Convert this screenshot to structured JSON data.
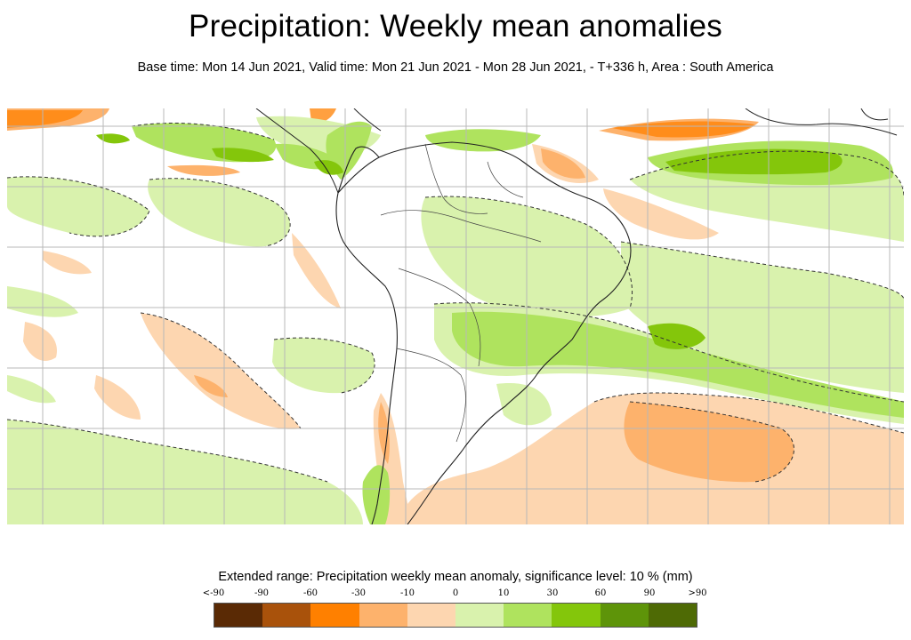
{
  "header": {
    "title": "Precipitation: Weekly mean anomalies",
    "subtitle": "Base time: Mon 14 Jun 2021, Valid time: Mon 21 Jun 2021 - Mon 28 Jun 2021, - T+336 h, Area : South America"
  },
  "legend": {
    "title": "Extended range: Precipitation weekly mean anomaly, significance level: 10 % (mm)",
    "tick_labels": [
      "<-90",
      "-90",
      "-60",
      "-30",
      "-10",
      "0",
      "10",
      "30",
      "60",
      "90",
      ">90"
    ],
    "bins": [
      {
        "range": "<-90",
        "color": "#5a2a05"
      },
      {
        "range": "-90 to -60",
        "color": "#a9520b"
      },
      {
        "range": "-60 to -30",
        "color": "#ff8000"
      },
      {
        "range": "-30 to -10",
        "color": "#fdb26c"
      },
      {
        "range": "-10 to 0",
        "color": "#fdd6b0"
      },
      {
        "range": "0 to 10",
        "color": "#d9f2ad"
      },
      {
        "range": "10 to 30",
        "color": "#afe35e"
      },
      {
        "range": "30 to 60",
        "color": "#84c60b"
      },
      {
        "range": "60 to 90",
        "color": "#5e9409"
      },
      {
        "range": ">90",
        "color": "#4e6a05"
      }
    ]
  },
  "map": {
    "area": "South America",
    "variable": "Precipitation weekly mean anomaly",
    "units": "mm",
    "significance_contour": "dashed"
  }
}
